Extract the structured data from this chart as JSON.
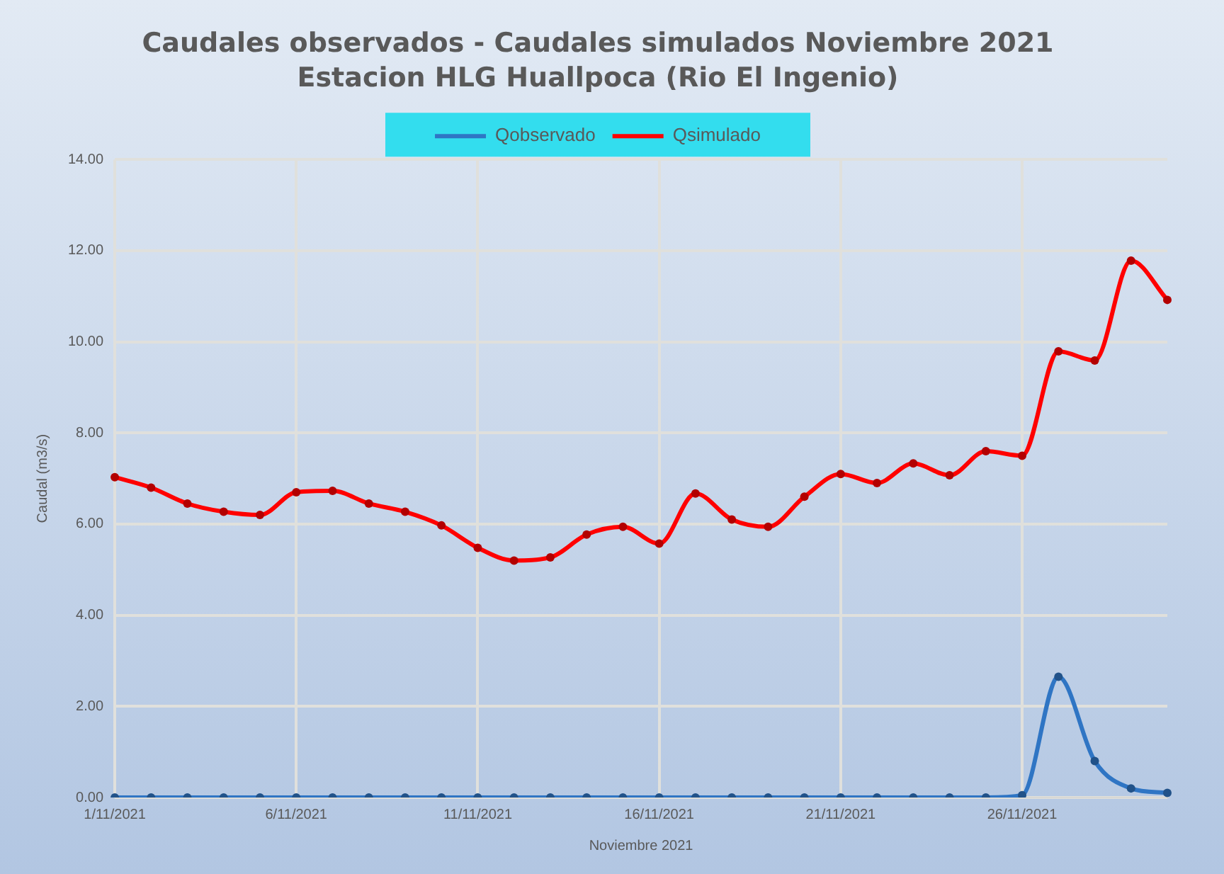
{
  "chart_data": {
    "type": "line",
    "title": "Caudales observados - Caudales simulados Noviembre 2021",
    "subtitle": "Estacion HLG Huallpoca (Rio El Ingenio)",
    "xlabel": "Noviembre 2021",
    "ylabel": "Caudal (m3/s)",
    "categories": [
      "1/11/2021",
      null,
      null,
      null,
      null,
      "6/11/2021",
      null,
      null,
      null,
      null,
      "11/11/2021",
      null,
      null,
      null,
      null,
      "16/11/2021",
      null,
      null,
      null,
      null,
      "21/11/2021",
      null,
      null,
      null,
      null,
      "26/11/2021",
      null,
      null,
      null,
      null
    ],
    "series": [
      {
        "name": "Qobservado",
        "color": "#2f75c4",
        "values": [
          0,
          0,
          0,
          0,
          0,
          0,
          0,
          0,
          0,
          0,
          0,
          0,
          0,
          0,
          0,
          0,
          0,
          0,
          0,
          0,
          0,
          0,
          0,
          0,
          0,
          0.05,
          2.65,
          0.8,
          0.2,
          0.1
        ]
      },
      {
        "name": "Qsimulado",
        "color": "#ff0000",
        "values": [
          7.03,
          6.8,
          6.45,
          6.27,
          6.2,
          6.7,
          6.73,
          6.45,
          6.27,
          5.97,
          5.48,
          5.2,
          5.27,
          5.77,
          5.94,
          5.57,
          6.67,
          6.1,
          5.94,
          6.6,
          7.1,
          6.9,
          7.33,
          7.07,
          7.6,
          7.5,
          9.79,
          9.59,
          11.78,
          10.92
        ]
      }
    ],
    "ylim": [
      0,
      14
    ],
    "yticks": [
      {
        "value": 0,
        "label": "0.00"
      },
      {
        "value": 2,
        "label": "2.00"
      },
      {
        "value": 4,
        "label": "4.00"
      },
      {
        "value": 6,
        "label": "6.00"
      },
      {
        "value": 8,
        "label": "8.00"
      },
      {
        "value": 10,
        "label": "10.00"
      },
      {
        "value": 12,
        "label": "12.00"
      },
      {
        "value": 14,
        "label": "14.00"
      }
    ],
    "grid": true,
    "legend": "top",
    "marker": "circle",
    "line_style": "solid"
  }
}
